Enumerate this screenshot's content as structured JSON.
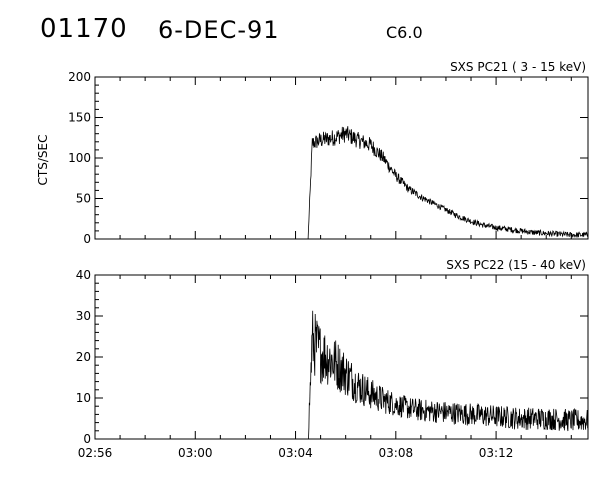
{
  "header": {
    "event_number": "01170",
    "date": "6-DEC-91",
    "goes_class": "C6.0"
  },
  "chart_data": [
    {
      "type": "line",
      "title": "SXS PC21  (  3 - 15 keV)",
      "ylabel": "CTS/SEC",
      "xlabel": "",
      "x_unit": "UT",
      "xlim": [
        "02:56",
        "03:15:40"
      ],
      "ylim": [
        0,
        200
      ],
      "yticks": [
        "0",
        "50",
        "100",
        "150",
        "200"
      ],
      "xticks": [],
      "grid": false,
      "x": [
        "03:04:30",
        "03:04:40",
        "03:05:00",
        "03:05:30",
        "03:06:00",
        "03:06:30",
        "03:07:00",
        "03:07:30",
        "03:08:00",
        "03:08:30",
        "03:09:00",
        "03:09:30",
        "03:10:00",
        "03:10:30",
        "03:11:00",
        "03:11:30",
        "03:12:00",
        "03:12:30",
        "03:13:00",
        "03:13:30",
        "03:14:00",
        "03:14:30",
        "03:15:00",
        "03:15:40"
      ],
      "values": [
        0,
        118,
        122,
        125,
        130,
        122,
        116,
        100,
        78,
        62,
        52,
        44,
        36,
        28,
        22,
        17,
        14,
        12,
        10,
        8,
        7,
        6,
        5,
        5
      ]
    },
    {
      "type": "line",
      "title": "SXS PC22  (15 - 40 keV)",
      "ylabel": "",
      "xlabel": "",
      "x_unit": "UT",
      "xlim": [
        "02:56",
        "03:15:40"
      ],
      "ylim": [
        0,
        40
      ],
      "yticks": [
        "0",
        "10",
        "20",
        "30",
        "40"
      ],
      "xticks": [
        "02:56",
        "03:00",
        "03:04",
        "03:08",
        "03:12"
      ],
      "grid": false,
      "x": [
        "03:04:30",
        "03:04:40",
        "03:05:00",
        "03:05:30",
        "03:06:00",
        "03:06:30",
        "03:07:00",
        "03:07:30",
        "03:08:00",
        "03:08:30",
        "03:09:00",
        "03:10:00",
        "03:11:00",
        "03:12:00",
        "03:13:00",
        "03:14:00",
        "03:15:00",
        "03:15:40"
      ],
      "values": [
        0,
        24,
        21,
        19,
        16,
        13,
        11,
        9.5,
        8.5,
        7.5,
        7,
        6.5,
        6,
        5.5,
        5,
        5,
        4.5,
        4.5
      ]
    }
  ]
}
